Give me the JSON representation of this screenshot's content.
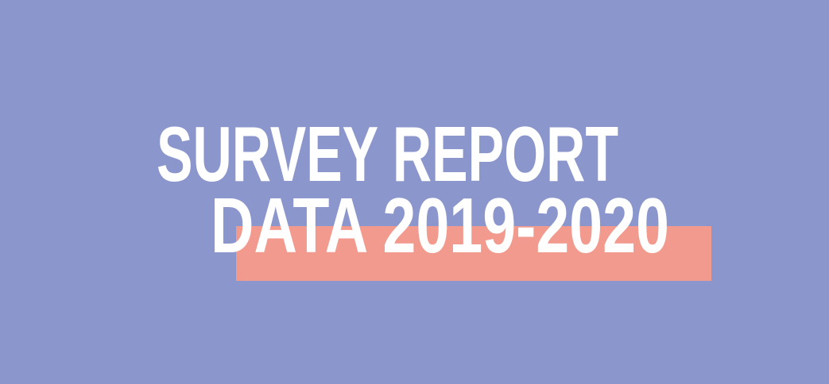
{
  "banner": {
    "line1": "SURVEY REPORT",
    "line2": "DATA 2019-2020"
  }
}
